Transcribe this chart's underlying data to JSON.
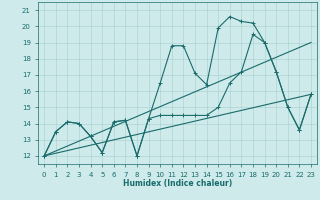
{
  "xlabel": "Humidex (Indice chaleur)",
  "xlim": [
    -0.5,
    23.5
  ],
  "ylim": [
    11.5,
    21.5
  ],
  "xticks": [
    0,
    1,
    2,
    3,
    4,
    5,
    6,
    7,
    8,
    9,
    10,
    11,
    12,
    13,
    14,
    15,
    16,
    17,
    18,
    19,
    20,
    21,
    22,
    23
  ],
  "yticks": [
    12,
    13,
    14,
    15,
    16,
    17,
    18,
    19,
    20,
    21
  ],
  "background_color": "#ceeaea",
  "grid_color": "#aed4d4",
  "line_color": "#1a6b6b",
  "line1_y": [
    12.0,
    13.5,
    14.1,
    14.0,
    13.2,
    12.2,
    14.1,
    14.2,
    12.0,
    14.3,
    14.5,
    14.5,
    14.5,
    14.5,
    14.5,
    15.0,
    16.5,
    17.2,
    19.5,
    19.0,
    17.2,
    15.0,
    13.6,
    15.8
  ],
  "line2_y": [
    12.0,
    13.5,
    14.1,
    14.0,
    13.2,
    12.2,
    14.1,
    14.2,
    12.0,
    14.3,
    16.5,
    18.8,
    18.8,
    17.1,
    16.4,
    19.9,
    20.6,
    20.3,
    20.2,
    19.0,
    17.2,
    15.0,
    13.6,
    15.8
  ],
  "trend1_x": [
    0,
    23
  ],
  "trend1_y": [
    12.0,
    15.8
  ],
  "trend2_x": [
    0,
    23
  ],
  "trend2_y": [
    12.0,
    19.0
  ]
}
